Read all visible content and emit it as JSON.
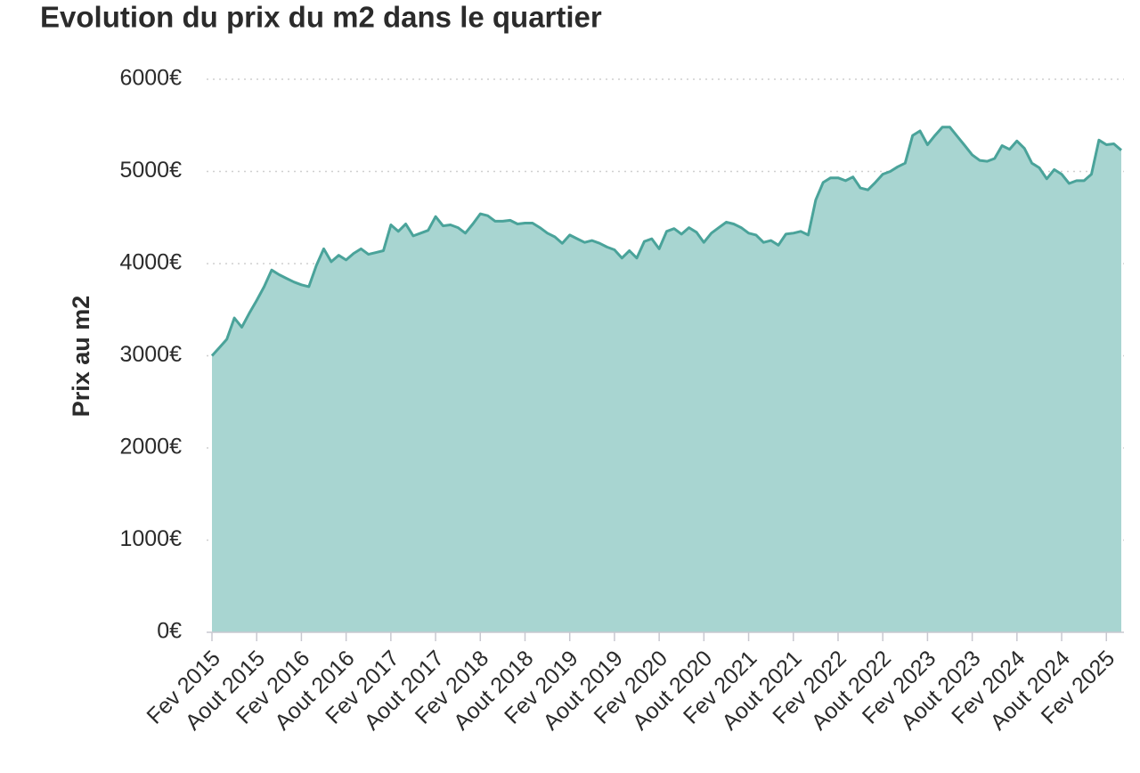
{
  "chart_data": {
    "type": "area",
    "title": "Evolution du prix du m2 dans le quartier",
    "ylabel": "Prix au m2",
    "categories": [
      "Fev 2015",
      null,
      null,
      null,
      null,
      null,
      "Aout 2015",
      null,
      null,
      null,
      null,
      null,
      "Fev 2016",
      null,
      null,
      null,
      null,
      null,
      "Aout 2016",
      null,
      null,
      null,
      null,
      null,
      "Fev 2017",
      null,
      null,
      null,
      null,
      null,
      "Aout 2017",
      null,
      null,
      null,
      null,
      null,
      "Fev 2018",
      null,
      null,
      null,
      null,
      null,
      "Aout 2018",
      null,
      null,
      null,
      null,
      null,
      "Fev 2019",
      null,
      null,
      null,
      null,
      null,
      "Aout 2019",
      null,
      null,
      null,
      null,
      null,
      "Fev 2020",
      null,
      null,
      null,
      null,
      null,
      "Aout 2020",
      null,
      null,
      null,
      null,
      null,
      "Fev 2021",
      null,
      null,
      null,
      null,
      null,
      "Aout 2021",
      null,
      null,
      null,
      null,
      null,
      "Fev 2022",
      null,
      null,
      null,
      null,
      null,
      "Aout 2022",
      null,
      null,
      null,
      null,
      null,
      "Fev 2023",
      null,
      null,
      null,
      null,
      null,
      "Aout 2023",
      null,
      null,
      null,
      null,
      null,
      "Fev 2024",
      null,
      null,
      null,
      null,
      null,
      "Aout 2024",
      null,
      null,
      null,
      null,
      null,
      "Fev 2025",
      null,
      null
    ],
    "values": [
      3000,
      3090,
      3180,
      3410,
      3310,
      3460,
      3600,
      3750,
      3930,
      3880,
      3840,
      3800,
      3770,
      3750,
      3980,
      4160,
      4020,
      4090,
      4040,
      4110,
      4160,
      4100,
      4120,
      4140,
      4420,
      4350,
      4430,
      4300,
      4330,
      4360,
      4510,
      4410,
      4420,
      4390,
      4330,
      4430,
      4540,
      4520,
      4460,
      4460,
      4470,
      4430,
      4440,
      4440,
      4390,
      4330,
      4290,
      4220,
      4310,
      4270,
      4230,
      4250,
      4220,
      4180,
      4150,
      4060,
      4140,
      4060,
      4240,
      4270,
      4160,
      4350,
      4380,
      4320,
      4390,
      4340,
      4230,
      4330,
      4390,
      4450,
      4430,
      4390,
      4330,
      4310,
      4230,
      4250,
      4200,
      4320,
      4330,
      4350,
      4310,
      4690,
      4880,
      4930,
      4930,
      4900,
      4940,
      4820,
      4800,
      4880,
      4970,
      5000,
      5050,
      5090,
      5390,
      5440,
      5290,
      5390,
      5480,
      5480,
      5380,
      5280,
      5180,
      5120,
      5110,
      5140,
      5280,
      5240,
      5330,
      5250,
      5090,
      5040,
      4920,
      5020,
      4970,
      4870,
      4900,
      4900,
      4970,
      5340,
      5290,
      5300,
      5230
    ],
    "color": "#a8d5d1",
    "line_color": "#4aa39a",
    "ylim": [
      0,
      6000
    ],
    "yticks": [
      {
        "value": 0,
        "label": "0€"
      },
      {
        "value": 1000,
        "label": "1000€"
      },
      {
        "value": 2000,
        "label": "2000€"
      },
      {
        "value": 3000,
        "label": "3000€"
      },
      {
        "value": 4000,
        "label": "4000€"
      },
      {
        "value": 5000,
        "label": "5000€"
      },
      {
        "value": 6000,
        "label": "6000€"
      }
    ],
    "grid": true
  }
}
